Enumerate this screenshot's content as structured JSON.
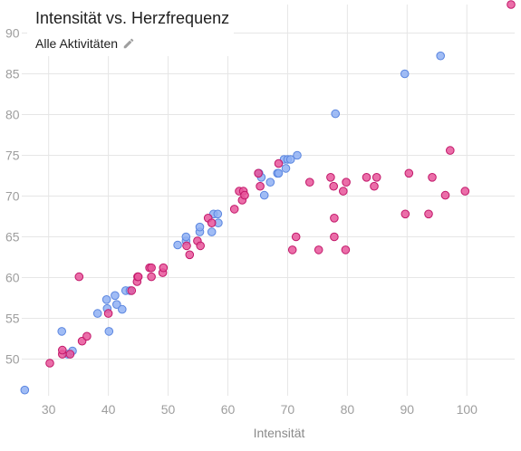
{
  "header": {
    "title": "Intensität vs. Herzfrequenz",
    "filter_label": "Alle Aktivitäten",
    "edit_icon": "pencil-icon"
  },
  "colors": {
    "series_blue": "#8fb0f3",
    "series_blue_stroke": "#5b86e0",
    "series_pink": "#e8559a",
    "series_pink_stroke": "#c2186a"
  },
  "chart_data": {
    "type": "scatter",
    "title": "Intensität vs. Herzfrequenz",
    "subtitle": "Alle Aktivitäten",
    "xlabel": "Intensität",
    "ylabel": "",
    "xlim": [
      25.5,
      108
    ],
    "ylim": [
      45.5,
      93.5
    ],
    "x_ticks": [
      30,
      40,
      50,
      60,
      70,
      80,
      90,
      100
    ],
    "y_ticks": [
      50,
      55,
      60,
      65,
      70,
      75,
      80,
      85,
      90
    ],
    "grid": true,
    "legend": "none",
    "series": [
      {
        "color": "#8fb0f3",
        "points": [
          [
            26,
            46.2
          ],
          [
            32.2,
            53.4
          ],
          [
            33.2,
            50.6
          ],
          [
            34,
            51
          ],
          [
            38.2,
            55.6
          ],
          [
            39.7,
            57.3
          ],
          [
            39.8,
            56.2
          ],
          [
            40.1,
            53.4
          ],
          [
            41.1,
            57.8
          ],
          [
            41.4,
            56.7
          ],
          [
            42.3,
            56.1
          ],
          [
            42.9,
            58.4
          ],
          [
            43.6,
            58.4
          ],
          [
            51.6,
            64
          ],
          [
            53,
            64.5
          ],
          [
            53,
            65
          ],
          [
            55.3,
            65.6
          ],
          [
            55.3,
            66.2
          ],
          [
            57.3,
            65.6
          ],
          [
            57.6,
            67.8
          ],
          [
            58.3,
            67.8
          ],
          [
            58.4,
            66.7
          ],
          [
            65.2,
            72.8
          ],
          [
            65.6,
            72.3
          ],
          [
            66.1,
            70.1
          ],
          [
            67.1,
            71.7
          ],
          [
            68.3,
            72.8
          ],
          [
            68.5,
            72.8
          ],
          [
            69.4,
            74.5
          ],
          [
            69.7,
            73.4
          ],
          [
            70,
            74.5
          ],
          [
            70.5,
            74.5
          ],
          [
            71.6,
            75
          ],
          [
            78,
            80.1
          ],
          [
            89.6,
            85
          ],
          [
            95.6,
            87.2
          ]
        ]
      },
      {
        "color": "#e8559a",
        "points": [
          [
            30.2,
            49.5
          ],
          [
            32.3,
            50.6
          ],
          [
            32.3,
            51.1
          ],
          [
            33.6,
            50.6
          ],
          [
            35.1,
            60.1
          ],
          [
            35.6,
            52.2
          ],
          [
            36.4,
            52.8
          ],
          [
            40,
            55.6
          ],
          [
            43.9,
            58.4
          ],
          [
            44.8,
            59.5
          ],
          [
            44.9,
            60.1
          ],
          [
            45,
            60.1
          ],
          [
            46.9,
            61.2
          ],
          [
            47.2,
            60.1
          ],
          [
            47.2,
            61.2
          ],
          [
            49.1,
            60.6
          ],
          [
            49.2,
            61.2
          ],
          [
            53.1,
            63.9
          ],
          [
            53.6,
            62.8
          ],
          [
            54.9,
            64.5
          ],
          [
            55.4,
            63.9
          ],
          [
            56.7,
            67.3
          ],
          [
            57.3,
            66.7
          ],
          [
            61.1,
            68.4
          ],
          [
            61.9,
            70.6
          ],
          [
            62.4,
            69.5
          ],
          [
            62.6,
            70.6
          ],
          [
            62.8,
            70.1
          ],
          [
            65.1,
            72.8
          ],
          [
            65.4,
            71.2
          ],
          [
            68.5,
            74
          ],
          [
            70.8,
            63.4
          ],
          [
            71.4,
            65
          ],
          [
            73.7,
            71.7
          ],
          [
            75.2,
            63.4
          ],
          [
            77.2,
            72.3
          ],
          [
            77.7,
            71.2
          ],
          [
            77.8,
            65
          ],
          [
            77.8,
            67.3
          ],
          [
            79.3,
            70.6
          ],
          [
            79.7,
            63.4
          ],
          [
            79.8,
            71.7
          ],
          [
            83.2,
            72.3
          ],
          [
            84.5,
            71.2
          ],
          [
            84.9,
            72.3
          ],
          [
            89.7,
            67.8
          ],
          [
            90.3,
            72.8
          ],
          [
            93.6,
            67.8
          ],
          [
            94.2,
            72.3
          ],
          [
            96.4,
            70.1
          ],
          [
            97.2,
            75.6
          ],
          [
            99.7,
            70.6
          ],
          [
            107.4,
            93.5
          ]
        ]
      }
    ]
  }
}
